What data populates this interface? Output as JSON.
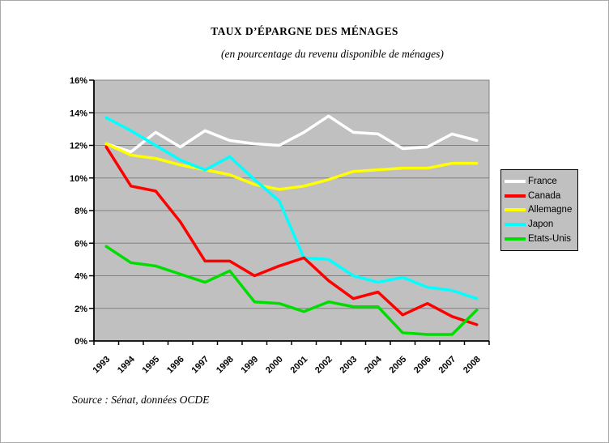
{
  "page": {
    "title": "TAUX D’ÉPARGNE DES MÉNAGES",
    "subtitle": "(en pourcentage du revenu disponible de ménages)",
    "source": "Source : Sénat, données OCDE"
  },
  "chart_data": {
    "type": "line",
    "title": "TAUX D’ÉPARGNE DES MÉNAGES",
    "subtitle": "(en pourcentage du revenu disponible de ménages)",
    "x": [
      "1993",
      "1994",
      "1995",
      "1996",
      "1997",
      "1998",
      "1999",
      "2000",
      "2001",
      "2002",
      "2003",
      "2004",
      "2005",
      "2006",
      "2007",
      "2008"
    ],
    "series": [
      {
        "name": "France",
        "color": "#FFFFFF",
        "values": [
          12.1,
          11.6,
          12.8,
          11.9,
          12.9,
          12.3,
          12.1,
          12.0,
          12.8,
          13.8,
          12.8,
          12.7,
          11.8,
          11.9,
          12.7,
          12.3
        ]
      },
      {
        "name": "Canada",
        "color": "#FF0000",
        "values": [
          11.9,
          9.5,
          9.2,
          7.3,
          4.9,
          4.9,
          4.0,
          4.6,
          5.1,
          3.7,
          2.6,
          3.0,
          1.6,
          2.3,
          1.5,
          1.0
        ]
      },
      {
        "name": "Allemagne",
        "color": "#FFFF00",
        "values": [
          12.1,
          11.4,
          11.2,
          10.8,
          10.5,
          10.2,
          9.6,
          9.3,
          9.5,
          9.9,
          10.4,
          10.5,
          10.6,
          10.6,
          10.9,
          10.9
        ]
      },
      {
        "name": "Japon",
        "color": "#00FFFF",
        "values": [
          13.7,
          12.9,
          12.0,
          11.1,
          10.5,
          11.3,
          9.9,
          8.6,
          5.1,
          5.0,
          4.0,
          3.6,
          3.9,
          3.3,
          3.1,
          2.6
        ]
      },
      {
        "name": "Etats-Unis",
        "color": "#00DD00",
        "values": [
          5.8,
          4.8,
          4.6,
          4.1,
          3.6,
          4.3,
          2.4,
          2.3,
          1.8,
          2.4,
          2.1,
          2.1,
          0.5,
          0.4,
          0.4,
          1.9
        ]
      }
    ],
    "ylim": [
      0,
      16
    ],
    "ytick_step": 2,
    "ytick_labels": [
      "0%",
      "2%",
      "4%",
      "6%",
      "8%",
      "10%",
      "12%",
      "14%",
      "16%"
    ],
    "grid": true,
    "legend_position": "right",
    "legend_entries": [
      "France",
      "Canada",
      "Allemagne",
      "Japon",
      "Etats-Unis"
    ],
    "plot_bg": "#C0C0C0",
    "grid_color": "#808080",
    "axis_color": "#000000"
  }
}
